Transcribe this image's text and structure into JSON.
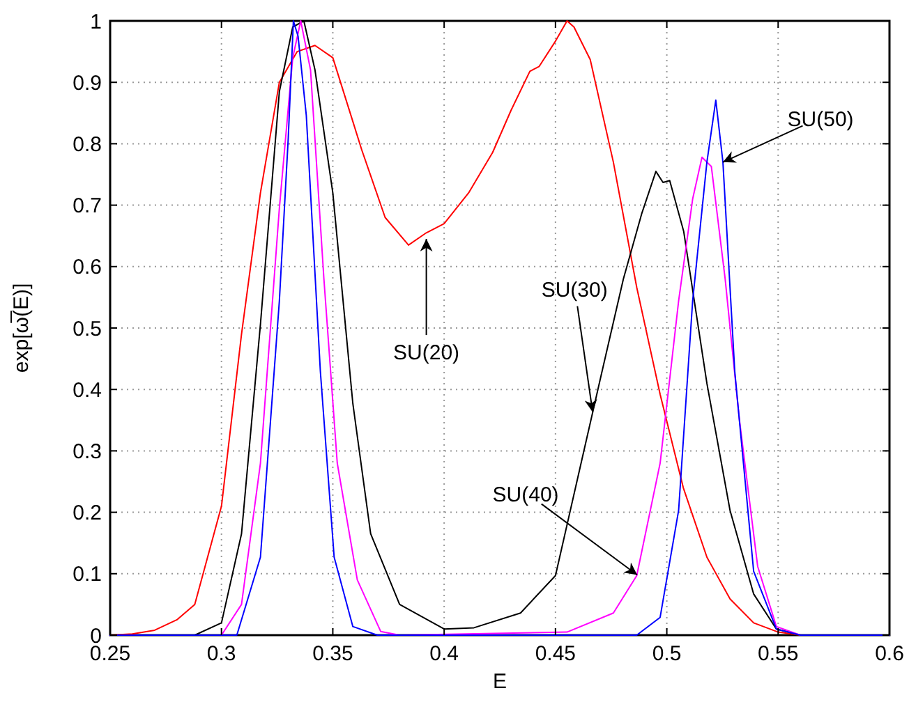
{
  "chart_data": {
    "type": "line",
    "xlabel": "E",
    "ylabel": "exp[ω̅(E)]",
    "xlim": [
      0.25,
      0.6
    ],
    "ylim": [
      0,
      1
    ],
    "xticks": [
      0.25,
      0.3,
      0.35,
      0.4,
      0.45,
      0.5,
      0.55,
      0.6
    ],
    "yticks": [
      0,
      0.1,
      0.2,
      0.3,
      0.4,
      0.5,
      0.6,
      0.7,
      0.8,
      0.9,
      1
    ],
    "grid": true,
    "line_style": "solid",
    "marker": "none",
    "series": [
      {
        "color": "#ff0000",
        "x": [
          0.25,
          0.26,
          0.27,
          0.28,
          0.288,
          0.3,
          0.309,
          0.3175,
          0.326,
          0.334,
          0.342,
          0.35,
          0.363,
          0.3735,
          0.384,
          0.392,
          0.4,
          0.411,
          0.4218,
          0.43,
          0.4385,
          0.4427,
          0.45,
          0.4552,
          0.4583,
          0.4656,
          0.476,
          0.4865,
          0.497,
          0.5074,
          0.518,
          0.5284,
          0.539,
          0.55,
          0.56,
          0.6
        ],
        "values": [
          0,
          0.002,
          0.008,
          0.025,
          0.05,
          0.21,
          0.49,
          0.72,
          0.9,
          0.95,
          0.96,
          0.94,
          0.79,
          0.68,
          0.635,
          0.655,
          0.67,
          0.72,
          0.786,
          0.854,
          0.918,
          0.926,
          0.967,
          1,
          0.99,
          0.937,
          0.77,
          0.566,
          0.392,
          0.24,
          0.127,
          0.059,
          0.02,
          0.005,
          0,
          0
        ]
      },
      {
        "color": "#000000",
        "x": [
          0.25,
          0.288,
          0.3,
          0.309,
          0.3175,
          0.326,
          0.332,
          0.337,
          0.342,
          0.35,
          0.359,
          0.367,
          0.38,
          0.4,
          0.4134,
          0.4343,
          0.45,
          0.4615,
          0.47,
          0.4805,
          0.4888,
          0.4951,
          0.4983,
          0.5013,
          0.5076,
          0.518,
          0.5284,
          0.539,
          0.5492,
          0.56,
          0.6
        ],
        "values": [
          0,
          0,
          0.02,
          0.165,
          0.506,
          0.885,
          0.99,
          1,
          0.92,
          0.72,
          0.377,
          0.165,
          0.05,
          0.01,
          0.012,
          0.036,
          0.097,
          0.28,
          0.415,
          0.58,
          0.687,
          0.755,
          0.737,
          0.74,
          0.657,
          0.41,
          0.203,
          0.067,
          0.01,
          0,
          0
        ]
      },
      {
        "color": "#ff00ff",
        "x": [
          0.25,
          0.3,
          0.309,
          0.3175,
          0.326,
          0.332,
          0.3356,
          0.34,
          0.346,
          0.352,
          0.361,
          0.3715,
          0.38,
          0.4552,
          0.476,
          0.4865,
          0.497,
          0.5053,
          0.5116,
          0.5158,
          0.52,
          0.5262,
          0.5325,
          0.5408,
          0.5492,
          0.56,
          0.6
        ],
        "values": [
          0,
          0,
          0.05,
          0.28,
          0.695,
          0.94,
          1,
          0.92,
          0.58,
          0.28,
          0.09,
          0.006,
          0,
          0.005,
          0.036,
          0.097,
          0.28,
          0.544,
          0.71,
          0.778,
          0.763,
          0.58,
          0.354,
          0.112,
          0.014,
          0,
          0
        ]
      },
      {
        "color": "#0000ff",
        "x": [
          0.25,
          0.3069,
          0.3175,
          0.326,
          0.33,
          0.3323,
          0.3344,
          0.3381,
          0.3444,
          0.3506,
          0.359,
          0.37,
          0.4865,
          0.497,
          0.5053,
          0.5116,
          0.518,
          0.522,
          0.5252,
          0.5305,
          0.539,
          0.5492,
          0.56,
          0.6
        ],
        "values": [
          0,
          0,
          0.127,
          0.544,
          0.81,
          1,
          0.975,
          0.846,
          0.43,
          0.127,
          0.014,
          0,
          0,
          0.029,
          0.203,
          0.544,
          0.77,
          0.871,
          0.77,
          0.43,
          0.104,
          0.01,
          0,
          0
        ]
      }
    ],
    "annotations": [
      {
        "text": "SU(20)",
        "x": 0.392,
        "y": 0.645
      },
      {
        "text": "SU(30)",
        "x": 0.4667,
        "y": 0.363
      },
      {
        "text": "SU(40)",
        "x": 0.4867,
        "y": 0.098
      },
      {
        "text": "SU(50)",
        "x": 0.5252,
        "y": 0.77
      }
    ]
  }
}
